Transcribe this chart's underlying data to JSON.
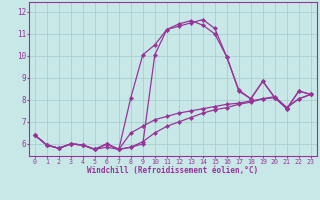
{
  "xlabel": "Windchill (Refroidissement éolien,°C)",
  "background_color": "#c8e8e8",
  "line_color": "#993399",
  "grid_color": "#a8cece",
  "xlim": [
    -0.5,
    23.5
  ],
  "ylim": [
    5.45,
    12.45
  ],
  "yticks": [
    6,
    7,
    8,
    9,
    10,
    11,
    12
  ],
  "xticks": [
    0,
    1,
    2,
    3,
    4,
    5,
    6,
    7,
    8,
    9,
    10,
    11,
    12,
    13,
    14,
    15,
    16,
    17,
    18,
    19,
    20,
    21,
    22,
    23
  ],
  "series": [
    [
      6.4,
      5.95,
      5.8,
      6.0,
      5.95,
      5.75,
      5.85,
      5.75,
      5.85,
      6.0,
      10.05,
      11.2,
      11.35,
      11.5,
      11.65,
      11.25,
      9.95,
      8.4,
      8.05,
      8.85,
      8.1,
      7.6,
      8.4,
      8.25
    ],
    [
      6.4,
      5.95,
      5.8,
      6.0,
      5.95,
      5.75,
      6.0,
      5.75,
      5.85,
      6.1,
      6.5,
      6.8,
      7.0,
      7.2,
      7.4,
      7.55,
      7.65,
      7.8,
      7.9,
      8.05,
      8.15,
      7.65,
      8.05,
      8.25
    ],
    [
      6.4,
      5.95,
      5.8,
      6.0,
      5.95,
      5.75,
      6.0,
      5.75,
      6.5,
      6.8,
      7.1,
      7.25,
      7.4,
      7.5,
      7.6,
      7.7,
      7.8,
      7.85,
      7.95,
      8.05,
      8.1,
      7.65,
      8.05,
      8.25
    ],
    [
      6.4,
      5.95,
      5.8,
      6.0,
      5.95,
      5.75,
      6.0,
      5.75,
      8.1,
      10.05,
      10.5,
      11.2,
      11.45,
      11.6,
      11.4,
      11.0,
      9.95,
      8.45,
      8.05,
      8.85,
      8.1,
      7.6,
      8.4,
      8.25
    ]
  ]
}
